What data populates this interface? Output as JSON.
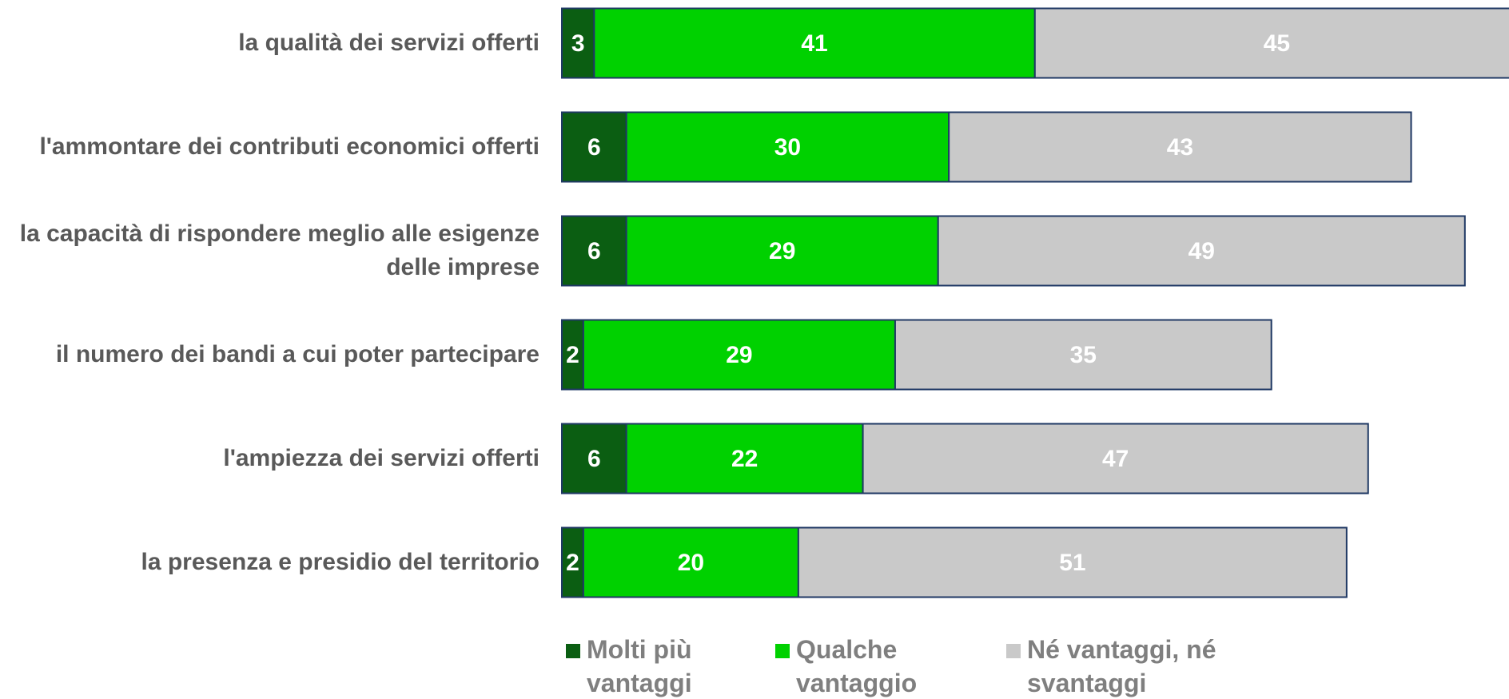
{
  "chart_data": {
    "type": "stacked-barh",
    "categories": [
      "la qualità dei servizi offerti",
      "l'ammontare dei contributi economici offerti",
      "la capacità di rispondere meglio alle esigenze delle imprese",
      "il numero dei bandi a cui poter partecipare",
      "l'ampiezza dei servizi offerti",
      "la presenza e presidio del  territorio"
    ],
    "series": [
      {
        "name": "Molti più vantaggi",
        "color": "#0b5e12",
        "values": [
          3,
          6,
          6,
          2,
          6,
          2
        ]
      },
      {
        "name": "Qualche vantaggio",
        "color": "#00d100",
        "values": [
          41,
          30,
          29,
          29,
          22,
          20
        ]
      },
      {
        "name": "Né vantaggi, né svantaggi",
        "color": "#c9c9c9",
        "values": [
          45,
          43,
          49,
          35,
          47,
          51
        ]
      }
    ]
  }
}
